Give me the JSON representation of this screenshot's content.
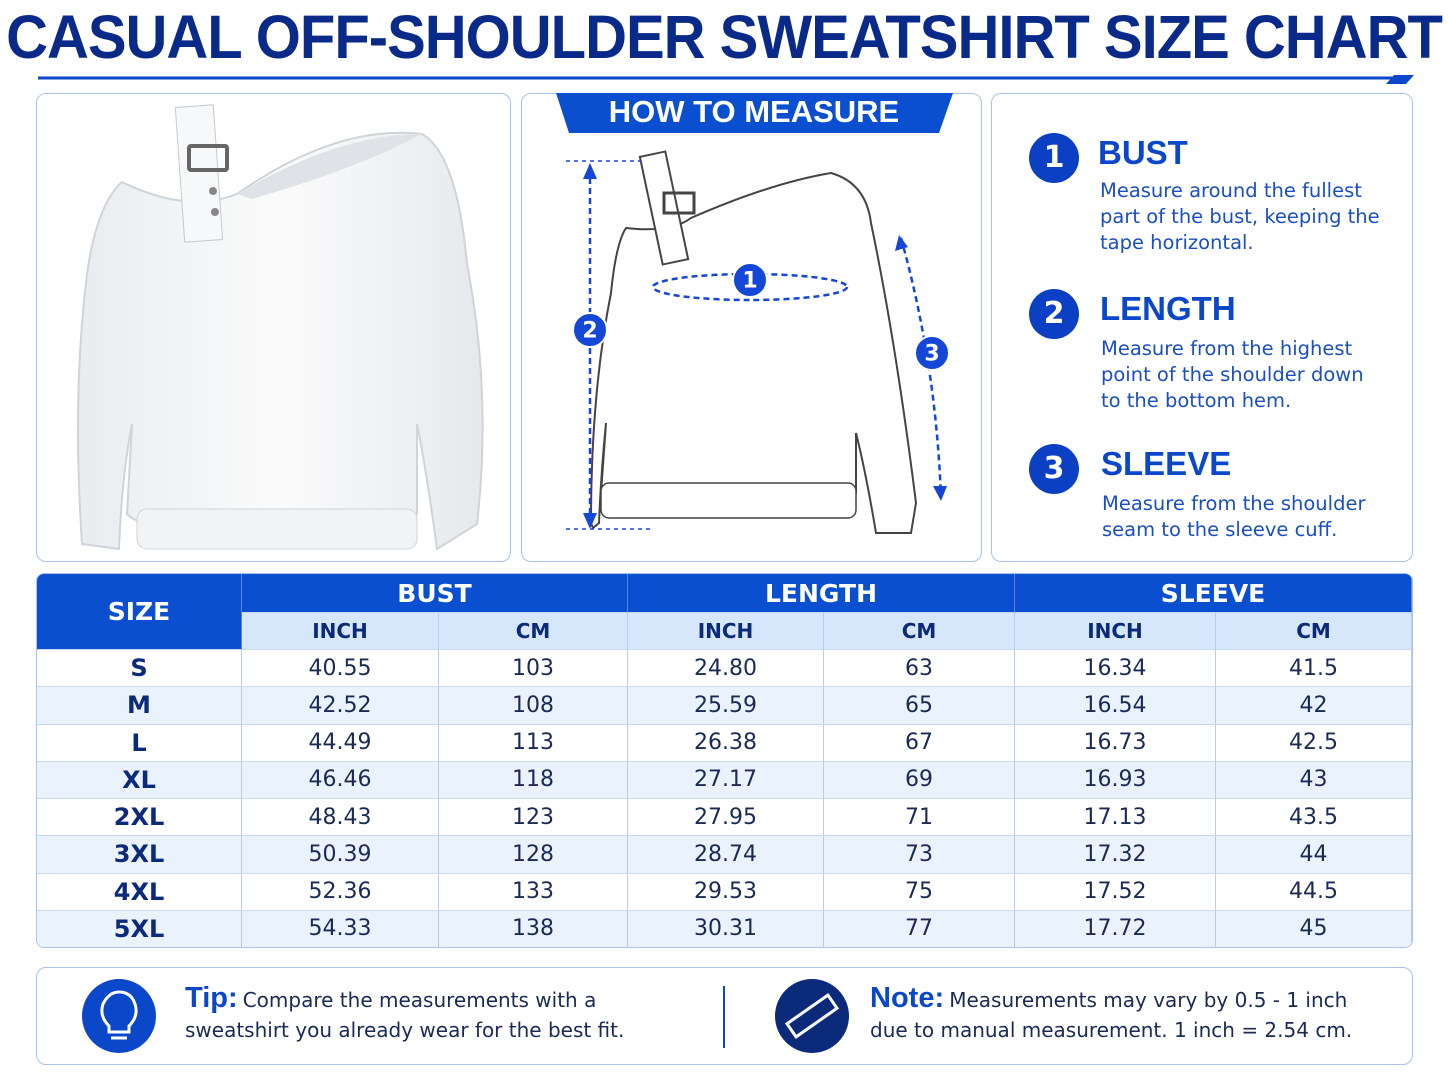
{
  "header": {
    "title": "CASUAL OFF-SHOULDER SWEATSHIRT SIZE CHART"
  },
  "how_to_measure": {
    "title": "HOW TO MEASURE",
    "markers": [
      "1",
      "2",
      "3"
    ]
  },
  "instructions": [
    {
      "number": "1",
      "heading": "BUST",
      "text": "Measure around the fullest part of the bust, keeping the tape horizontal."
    },
    {
      "number": "2",
      "heading": "LENGTH",
      "text": "Measure from the highest point of the shoulder down to the bottom hem."
    },
    {
      "number": "3",
      "heading": "SLEEVE",
      "text": "Measure from the shoulder seam to the sleeve cuff."
    }
  ],
  "table": {
    "size_header": "SIZE",
    "groups": [
      "BUST",
      "LENGTH",
      "SLEEVE"
    ],
    "units": [
      "INCH",
      "CM",
      "INCH",
      "CM",
      "INCH",
      "CM"
    ],
    "rows": [
      [
        "S",
        "40.55",
        "103",
        "24.80",
        "63",
        "16.34",
        "41.5"
      ],
      [
        "M",
        "42.52",
        "108",
        "25.59",
        "65",
        "16.54",
        "42"
      ],
      [
        "L",
        "44.49",
        "113",
        "26.38",
        "67",
        "16.73",
        "42.5"
      ],
      [
        "XL",
        "46.46",
        "118",
        "27.17",
        "69",
        "16.93",
        "43"
      ],
      [
        "2XL",
        "48.43",
        "123",
        "27.95",
        "71",
        "17.13",
        "43.5"
      ],
      [
        "3XL",
        "50.39",
        "128",
        "28.74",
        "73",
        "17.32",
        "44"
      ],
      [
        "4XL",
        "52.36",
        "133",
        "29.53",
        "75",
        "17.52",
        "44.5"
      ],
      [
        "5XL",
        "54.33",
        "138",
        "30.31",
        "77",
        "17.72",
        "45"
      ]
    ]
  },
  "footer": {
    "tip": {
      "label": "Tip:",
      "text": "Compare the measurements with a sweatshirt you already wear for the best fit."
    },
    "note": {
      "label": "Note:",
      "text": "Measurements may vary by 0.5 - 1 inch due to manual measurement.  1 inch = 2.54 cm."
    }
  }
}
